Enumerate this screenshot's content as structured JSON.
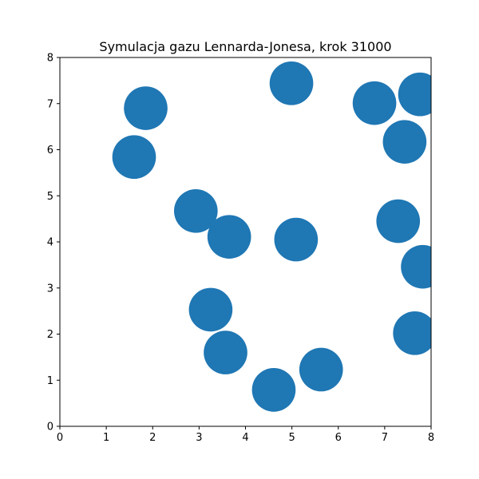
{
  "chart_data": {
    "type": "scatter",
    "title": "Symulacja gazu Lennarda-Jonesa, krok 31000",
    "xlabel": "",
    "ylabel": "",
    "xlim": [
      0,
      8
    ],
    "ylim": [
      0,
      8
    ],
    "xticks": [
      "0",
      "1",
      "2",
      "3",
      "4",
      "5",
      "6",
      "7",
      "8"
    ],
    "yticks": [
      "0",
      "1",
      "2",
      "3",
      "4",
      "5",
      "6",
      "7",
      "8"
    ],
    "grid": false,
    "point_color": "#1f77b4",
    "points": [
      {
        "x": 1.85,
        "y": 6.9
      },
      {
        "x": 1.6,
        "y": 5.84
      },
      {
        "x": 4.99,
        "y": 7.44
      },
      {
        "x": 6.78,
        "y": 7.01
      },
      {
        "x": 7.76,
        "y": 7.2
      },
      {
        "x": 7.43,
        "y": 6.17
      },
      {
        "x": 2.93,
        "y": 4.67
      },
      {
        "x": 3.65,
        "y": 4.11
      },
      {
        "x": 5.09,
        "y": 4.05
      },
      {
        "x": 7.29,
        "y": 4.45
      },
      {
        "x": 7.82,
        "y": 3.46
      },
      {
        "x": 3.25,
        "y": 2.53
      },
      {
        "x": 3.57,
        "y": 1.6
      },
      {
        "x": 7.65,
        "y": 2.02
      },
      {
        "x": 5.63,
        "y": 1.23
      },
      {
        "x": 4.61,
        "y": 0.79
      }
    ],
    "marker_diameter_data_units": 0.94
  }
}
